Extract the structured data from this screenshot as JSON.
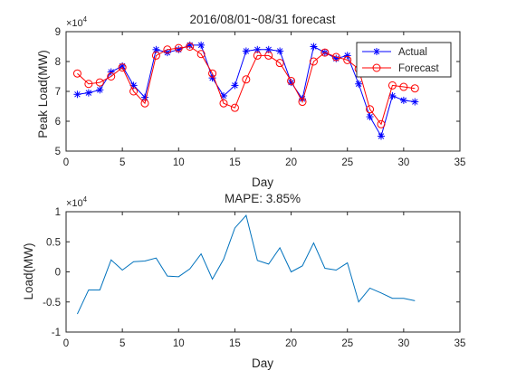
{
  "colors": {
    "actual": "#0000ff",
    "forecast": "#ff0000",
    "error": "#0072bd"
  },
  "chart_data": [
    {
      "type": "line",
      "title": "2016/08/01~08/31 forecast",
      "xlabel": "Day",
      "ylabel": "Peak Load(MW)",
      "y_multiplier_label": "×10",
      "y_multiplier_exp": "4",
      "xlim": [
        0,
        35
      ],
      "ylim": [
        5,
        9
      ],
      "xticks": [
        0,
        5,
        10,
        15,
        20,
        25,
        30,
        35
      ],
      "yticks": [
        5,
        6,
        7,
        8,
        9
      ],
      "legend_position": "top-right",
      "series": [
        {
          "name": "Actual",
          "marker": "asterisk",
          "x": [
            1,
            2,
            3,
            4,
            5,
            6,
            7,
            8,
            9,
            10,
            11,
            12,
            13,
            14,
            15,
            16,
            17,
            18,
            19,
            20,
            21,
            22,
            23,
            24,
            25,
            26,
            27,
            28,
            29,
            30,
            31
          ],
          "values": [
            6.9,
            6.95,
            7.05,
            7.65,
            7.85,
            7.2,
            6.8,
            8.4,
            8.3,
            8.4,
            8.55,
            8.55,
            7.45,
            6.85,
            7.2,
            8.35,
            8.4,
            8.4,
            8.35,
            7.3,
            6.75,
            8.5,
            8.3,
            8.1,
            8.2,
            7.25,
            6.15,
            5.5,
            6.85,
            6.7,
            6.65
          ]
        },
        {
          "name": "Forecast",
          "marker": "circle",
          "x": [
            1,
            2,
            3,
            4,
            5,
            6,
            7,
            8,
            9,
            10,
            11,
            12,
            13,
            14,
            15,
            16,
            17,
            18,
            19,
            20,
            21,
            22,
            23,
            24,
            25,
            26,
            27,
            28,
            29,
            30,
            31
          ],
          "values": [
            7.6,
            7.25,
            7.3,
            7.5,
            7.8,
            7.0,
            6.6,
            8.2,
            8.4,
            8.45,
            8.5,
            8.25,
            7.6,
            6.6,
            6.45,
            7.4,
            8.2,
            8.2,
            7.95,
            7.35,
            6.65,
            8.0,
            8.3,
            8.15,
            8.05,
            7.75,
            6.4,
            5.9,
            7.2,
            7.15,
            7.1
          ]
        }
      ]
    },
    {
      "type": "line",
      "title": "MAPE: 3.85%",
      "xlabel": "Day",
      "ylabel": "Load(MW)",
      "y_multiplier_label": "×10",
      "y_multiplier_exp": "4",
      "xlim": [
        0,
        35
      ],
      "ylim": [
        -1,
        1
      ],
      "xticks": [
        0,
        5,
        10,
        15,
        20,
        25,
        30,
        35
      ],
      "yticks": [
        -1,
        -0.5,
        0,
        0.5,
        1
      ],
      "ytick_labels": [
        "-1",
        "-0.5",
        "0",
        "0.5",
        "1"
      ],
      "series": [
        {
          "x": [
            1,
            2,
            3,
            4,
            5,
            6,
            7,
            8,
            9,
            10,
            11,
            12,
            13,
            14,
            15,
            16,
            17,
            18,
            19,
            20,
            21,
            22,
            23,
            24,
            25,
            26,
            27,
            28,
            29,
            30,
            31
          ],
          "values": [
            -0.7,
            -0.3,
            -0.3,
            0.2,
            0.03,
            0.17,
            0.18,
            0.23,
            -0.07,
            -0.08,
            0.05,
            0.3,
            -0.12,
            0.21,
            0.73,
            0.94,
            0.19,
            0.13,
            0.4,
            0.0,
            0.1,
            0.48,
            0.06,
            0.03,
            0.15,
            -0.5,
            -0.27,
            -0.35,
            -0.44,
            -0.44,
            -0.48
          ]
        }
      ]
    }
  ]
}
